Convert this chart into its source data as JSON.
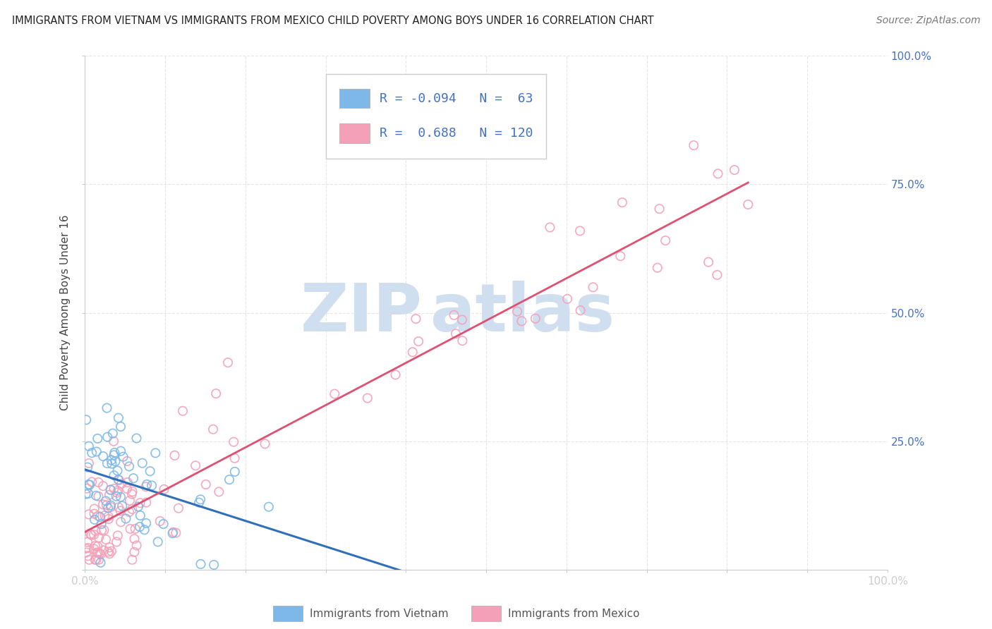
{
  "title": "IMMIGRANTS FROM VIETNAM VS IMMIGRANTS FROM MEXICO CHILD POVERTY AMONG BOYS UNDER 16 CORRELATION CHART",
  "source": "Source: ZipAtlas.com",
  "ylabel": "Child Poverty Among Boys Under 16",
  "vietnam_R": -0.094,
  "vietnam_N": 63,
  "mexico_R": 0.688,
  "mexico_N": 120,
  "vietnam_color": "#7db8e8",
  "mexico_color": "#f4a0b8",
  "vietnam_line_color": "#3070b8",
  "mexico_line_color": "#e05070",
  "watermark_zip": "ZIP",
  "watermark_atlas": "atlas",
  "watermark_color": "#d0dff0",
  "background_color": "#ffffff",
  "grid_color": "#e0e0e0",
  "tick_label_color": "#555555",
  "right_tick_color": "#4472c4",
  "legend_border_color": "#cccccc",
  "legend_text_color": "#222222",
  "legend_value_color": "#4472c4"
}
